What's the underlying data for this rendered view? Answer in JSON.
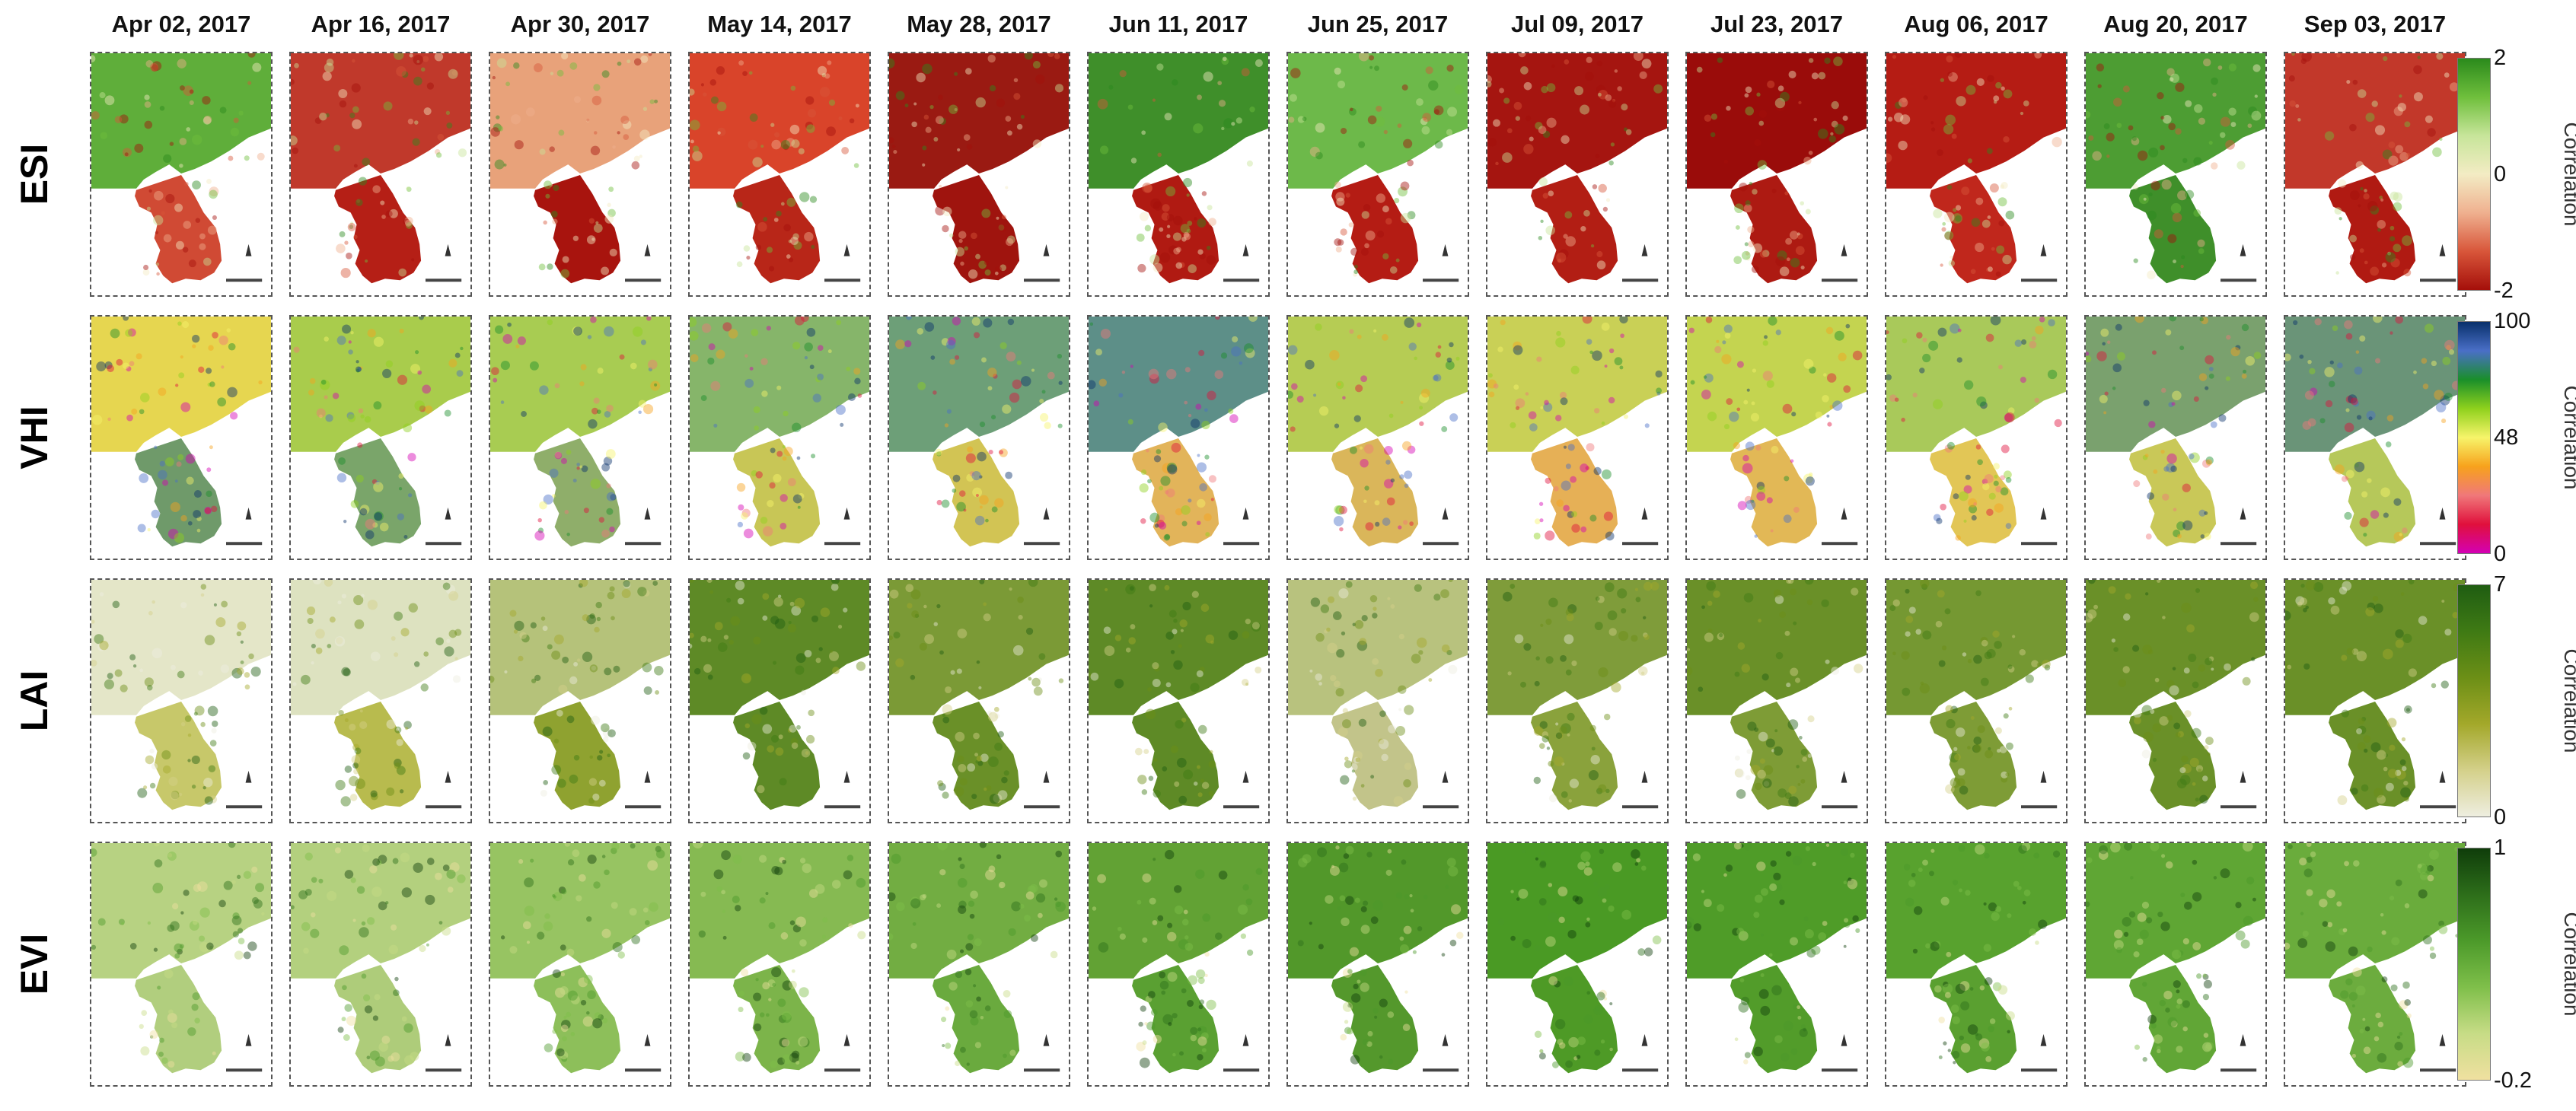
{
  "dates": [
    "Apr 02, 2017",
    "Apr 16, 2017",
    "Apr 30, 2017",
    "May 14, 2017",
    "May 28, 2017",
    "Jun 11, 2017",
    "Jun 25, 2017",
    "Jul 09, 2017",
    "Jul 23, 2017",
    "Aug 06, 2017",
    "Aug 20, 2017",
    "Sep 03, 2017"
  ],
  "rows": [
    {
      "id": "esi",
      "label": "ESI",
      "colorbar": {
        "title": "Correlation",
        "ticks": [
          "2",
          "0",
          "-2"
        ],
        "colors": [
          "#2b8a1c",
          "#6fbf3c",
          "#c7e59a",
          "#f3ecc4",
          "#efb08f",
          "#d8563a",
          "#a50f0a"
        ]
      },
      "panel_fill": {
        "north": [
          "#5fae3a",
          "#c0392b",
          "#e8a27a",
          "#d9442a",
          "#9a1a12",
          "#3f8f2a",
          "#6db94a",
          "#a51510",
          "#9a0c0a",
          "#b51c14",
          "#4d9d33",
          "#c2382a"
        ],
        "south": [
          "#d04a34",
          "#b51f16",
          "#a8140e",
          "#b82618",
          "#9f140e",
          "#b01a12",
          "#b41c14",
          "#b21e14",
          "#ad1a12",
          "#c0271c",
          "#3f8f2a",
          "#b01a12"
        ]
      }
    },
    {
      "id": "vhi",
      "label": "VHI",
      "colorbar": {
        "title": "Correlation",
        "ticks": [
          "100",
          "48",
          "0"
        ],
        "colors": [
          "#08306b",
          "#4a6fc7",
          "#1a8f2a",
          "#8fd11d",
          "#f7f46a",
          "#f7a21c",
          "#f0787a",
          "#e0103c",
          "#d400b4"
        ]
      },
      "panel_fill": {
        "north": [
          "#e6d650",
          "#a9cc4c",
          "#a8cc52",
          "#86b56a",
          "#6d9f78",
          "#5d8f88",
          "#b6cc54",
          "#c9d056",
          "#c4d450",
          "#a9c95a",
          "#7aa16e",
          "#6a9478"
        ],
        "south": [
          "#6f9a6a",
          "#7aa56a",
          "#8fae6a",
          "#c8c656",
          "#d2c454",
          "#e2b45a",
          "#dab65a",
          "#e6b056",
          "#e2b856",
          "#e2c656",
          "#c9c858",
          "#b6c85a"
        ]
      }
    },
    {
      "id": "lai",
      "label": "LAI",
      "colorbar": {
        "title": "Correlation",
        "ticks": [
          "7",
          "0"
        ],
        "colors": [
          "#1f5d12",
          "#3f7a14",
          "#6c8f16",
          "#a3a82a",
          "#d4d08a",
          "#eeeee0"
        ]
      },
      "panel_fill": {
        "north": [
          "#e4e6c8",
          "#dde2c0",
          "#b5c27a",
          "#5e8a26",
          "#7b9a36",
          "#5e8a26",
          "#b8c27e",
          "#7f9c3a",
          "#6a9028",
          "#759832",
          "#6a9028",
          "#6a9028"
        ],
        "south": [
          "#c7c86a",
          "#b8bb4e",
          "#8fa230",
          "#5e8a26",
          "#6a9028",
          "#5e8a26",
          "#c2c48a",
          "#8aa23c",
          "#7e9c36",
          "#7e9c36",
          "#6a9028",
          "#6a9028"
        ]
      }
    },
    {
      "id": "evi",
      "label": "EVI",
      "colorbar": {
        "title": "Correlation",
        "ticks": [
          "1",
          "-0.2"
        ],
        "colors": [
          "#0f3d0a",
          "#2d6e1a",
          "#4c9a2a",
          "#7fbf4a",
          "#c7dc86",
          "#f0e0a0"
        ]
      },
      "panel_fill": {
        "north": [
          "#b7d282",
          "#b3d07e",
          "#97c462",
          "#86ba52",
          "#72ad42",
          "#62a234",
          "#52982a",
          "#4a9a24",
          "#4f9c28",
          "#58a22e",
          "#5fa634",
          "#6aac3c"
        ],
        "south": [
          "#b1ce7e",
          "#aecc7a",
          "#8dbf5a",
          "#7cb44a",
          "#6aaa3e",
          "#5aa032",
          "#54982c",
          "#4e9a26",
          "#529c2a",
          "#5aa030",
          "#61a636",
          "#6cac3e"
        ]
      }
    }
  ]
}
